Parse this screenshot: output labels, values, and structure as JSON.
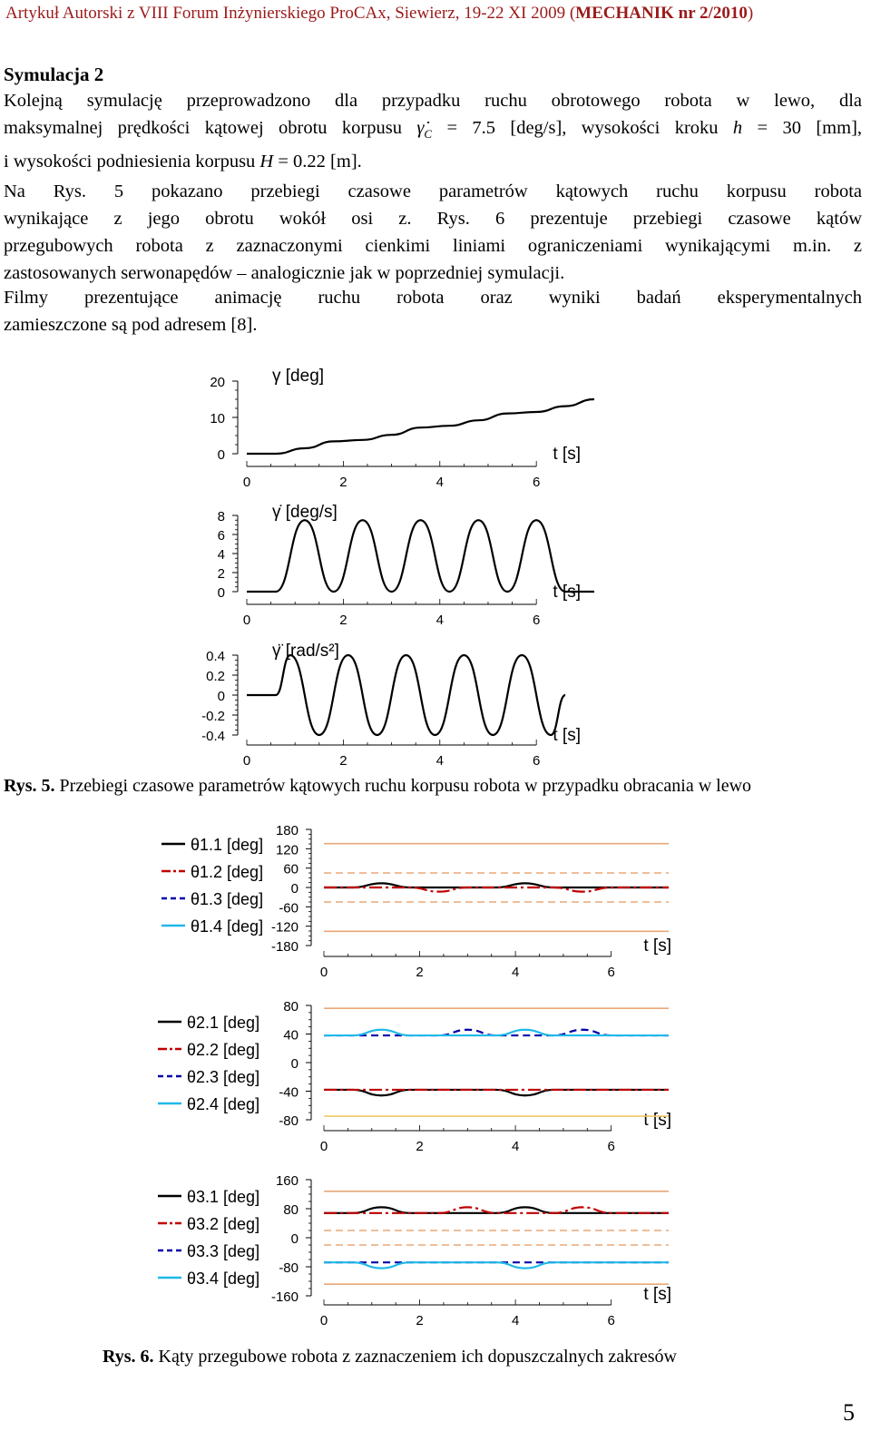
{
  "header": {
    "text": "Artykuł Autorski z VIII Forum Inżynierskiego ProCAx, Siewierz, 19-22 XI 2009 (",
    "journal": "MECHANIK nr 2/2010",
    "close": ")"
  },
  "section_title": "Symulacja 2",
  "paragraphs": {
    "p1": {
      "l1": "Kolejną symulację przeprowadzono dla przypadku ruchu obrotowego robota w lewo, dla",
      "l2_a": "maksymalnej prędkości kątowej obrotu korpusu",
      "l2_sym": "γ̇",
      "l2_sub": "C",
      "l2_b": "= 7.5 [deg/s], wysokości kroku",
      "l2_h": "h",
      "l2_c": "= 30 [mm],",
      "l3_a": "i wysokości podniesienia korpusu",
      "l3_H": "H",
      "l3_b": "= 0.22 [m]."
    },
    "p2": {
      "l1": "Na Rys. 5 pokazano przebiegi czasowe parametrów kątowych ruchu korpusu robota",
      "l2": "wynikające z jego obrotu wokół osi z. Rys. 6 prezentuje przebiegi czasowe kątów",
      "l3": "przegubowych robota z zaznaczonymi cienkimi liniami ograniczeniami wynikającymi m.in. z",
      "l4": "zastosowanych serwonapędów – analogicznie jak w poprzedniej symulacji."
    },
    "p3": {
      "l1": "Filmy prezentujące animację ruchu robota oraz wyniki badań eksperymentalnych",
      "l2": "zamieszczone są pod adresem [8]."
    }
  },
  "fig5_caption": {
    "label": "Rys. 5.",
    "text": " Przebiegi czasowe parametrów kątowych ruchu korpusu robota w przypadku obracania w lewo"
  },
  "fig6_caption": {
    "label": "Rys. 6.",
    "text": " Kąty przegubowe robota z zaznaczeniem ich dopuszczalnych zakresów"
  },
  "page_number": "5",
  "colors": {
    "black": "#000000",
    "red": "#c00000",
    "blue": "#0000aa",
    "cyan": "#20b8e8",
    "limit": "#e8a878",
    "limit2": "#f0c868"
  },
  "chart_data": [
    {
      "type": "line",
      "ylabel": "γ [deg]",
      "xlabel": "t [s]",
      "xticks": [
        "0",
        "2",
        "4",
        "6"
      ],
      "yticks": [
        "20",
        "10",
        "0"
      ],
      "xlim": [
        0,
        7.2
      ],
      "ylim": [
        0,
        20
      ],
      "series": [
        {
          "values": [
            [
              0,
              0
            ],
            [
              0.6,
              0
            ],
            [
              1.2,
              1.5
            ],
            [
              1.8,
              3.4
            ],
            [
              2.4,
              3.8
            ],
            [
              3,
              5.2
            ],
            [
              3.6,
              7.2
            ],
            [
              4.2,
              7.7
            ],
            [
              4.8,
              9.2
            ],
            [
              5.4,
              11.1
            ],
            [
              6,
              11.5
            ],
            [
              6.6,
              13.1
            ],
            [
              7.2,
              15
            ]
          ]
        }
      ]
    },
    {
      "type": "line",
      "ylabel": "γ̇ [deg/s]",
      "xlabel": "t [s]",
      "xticks": [
        "0",
        "2",
        "4",
        "6"
      ],
      "yticks": [
        "8",
        "6",
        "4",
        "2",
        "0"
      ],
      "xlim": [
        0,
        7.2
      ],
      "ylim": [
        0,
        8
      ],
      "series": [
        {
          "values": [
            [
              0,
              0
            ],
            [
              0.6,
              0
            ],
            [
              1.2,
              7.5
            ],
            [
              1.8,
              0
            ],
            [
              2.4,
              7.5
            ],
            [
              3,
              0
            ],
            [
              3.6,
              7.5
            ],
            [
              4.2,
              0
            ],
            [
              4.8,
              7.5
            ],
            [
              5.4,
              0
            ],
            [
              6,
              7.5
            ],
            [
              6.6,
              0
            ],
            [
              7.2,
              0
            ]
          ]
        }
      ]
    },
    {
      "type": "line",
      "ylabel": "γ̈ [rad/s²]",
      "xlabel": "t [s]",
      "xticks": [
        "0",
        "2",
        "4",
        "6"
      ],
      "yticks": [
        "0.4",
        "0.2",
        "0",
        "-0.2",
        "-0.4"
      ],
      "xlim": [
        0,
        7.2
      ],
      "ylim": [
        -0.4,
        0.4
      ],
      "series": [
        {
          "values": [
            [
              0,
              0
            ],
            [
              0.6,
              0
            ],
            [
              0.9,
              0.4
            ],
            [
              1.5,
              -0.4
            ],
            [
              2.1,
              0.4
            ],
            [
              2.7,
              -0.4
            ],
            [
              3.3,
              0.4
            ],
            [
              3.9,
              -0.4
            ],
            [
              4.5,
              0.4
            ],
            [
              5.1,
              -0.4
            ],
            [
              5.7,
              0.4
            ],
            [
              6.3,
              -0.4
            ],
            [
              6.6,
              0
            ]
          ]
        }
      ]
    },
    {
      "type": "line",
      "xlabel": "t [s]",
      "xticks": [
        "0",
        "2",
        "4",
        "6"
      ],
      "yticks": [
        "180",
        "120",
        "60",
        "0",
        "-60",
        "-120",
        "-180"
      ],
      "xlim": [
        0,
        7.2
      ],
      "ylim": [
        -180,
        180
      ],
      "legend": [
        "θ1.1 [deg]",
        "θ1.2 [deg]",
        "θ1.3 [deg]",
        "θ1.4 [deg]"
      ],
      "series": [
        {
          "name": "θ1.1 [deg]",
          "values": [
            [
              0,
              0
            ],
            [
              0.6,
              0
            ],
            [
              1.2,
              13
            ],
            [
              1.8,
              0
            ],
            [
              2.4,
              0
            ],
            [
              3,
              0
            ],
            [
              3.6,
              0
            ],
            [
              4.2,
              13
            ],
            [
              4.8,
              0
            ],
            [
              5.4,
              0
            ],
            [
              6,
              0
            ],
            [
              7.2,
              0
            ]
          ]
        },
        {
          "name": "θ1.2 [deg]",
          "values": [
            [
              0,
              0
            ],
            [
              0.6,
              0
            ],
            [
              1.2,
              0
            ],
            [
              1.8,
              0
            ],
            [
              2.4,
              -13
            ],
            [
              3,
              0
            ],
            [
              3.6,
              0
            ],
            [
              4.2,
              0
            ],
            [
              4.8,
              0
            ],
            [
              5.4,
              -13
            ],
            [
              6,
              0
            ],
            [
              7.2,
              0
            ]
          ]
        }
      ],
      "limits": [
        136,
        45,
        -45,
        -136
      ]
    },
    {
      "type": "line",
      "xlabel": "t [s]",
      "xticks": [
        "0",
        "2",
        "4",
        "6"
      ],
      "yticks": [
        "80",
        "40",
        "0",
        "-40",
        "-80"
      ],
      "xlim": [
        0,
        7.2
      ],
      "ylim": [
        -80,
        80
      ],
      "legend": [
        "θ2.1 [deg]",
        "θ2.2 [deg]",
        "θ2.3 [deg]",
        "θ2.4 [deg]"
      ],
      "series": [
        {
          "name": "θ2.1 [deg]",
          "values": [
            [
              0,
              -38
            ],
            [
              0.6,
              -38
            ],
            [
              1.2,
              -46
            ],
            [
              1.8,
              -38
            ],
            [
              3,
              -38
            ],
            [
              3.6,
              -38
            ],
            [
              4.2,
              -46
            ],
            [
              4.8,
              -38
            ],
            [
              6,
              -38
            ],
            [
              7.2,
              -38
            ]
          ]
        },
        {
          "name": "θ2.2 [deg]",
          "values": [
            [
              0,
              -38
            ],
            [
              7.2,
              -38
            ]
          ]
        },
        {
          "name": "θ2.3 [deg]",
          "values": [
            [
              0,
              38
            ],
            [
              2.4,
              38
            ],
            [
              3,
              46
            ],
            [
              3.6,
              38
            ],
            [
              4.8,
              38
            ],
            [
              5.4,
              46
            ],
            [
              6,
              38
            ],
            [
              7.2,
              38
            ]
          ]
        },
        {
          "name": "θ2.4 [deg]",
          "values": [
            [
              0,
              38
            ],
            [
              0.6,
              38
            ],
            [
              1.2,
              46
            ],
            [
              1.8,
              38
            ],
            [
              3,
              38
            ],
            [
              3.6,
              38
            ],
            [
              4.2,
              46
            ],
            [
              4.8,
              38
            ],
            [
              7.2,
              38
            ]
          ]
        }
      ],
      "limits": [
        76,
        -75
      ]
    },
    {
      "type": "line",
      "xlabel": "t [s]",
      "xticks": [
        "0",
        "2",
        "4",
        "6"
      ],
      "yticks": [
        "160",
        "80",
        "0",
        "-80",
        "-160"
      ],
      "xlim": [
        0,
        7.2
      ],
      "ylim": [
        -160,
        160
      ],
      "legend": [
        "θ3.1 [deg]",
        "θ3.2 [deg]",
        "θ3.3 [deg]",
        "θ3.4 [deg]"
      ],
      "series": [
        {
          "name": "θ3.1 [deg]",
          "values": [
            [
              0,
              68
            ],
            [
              0.6,
              68
            ],
            [
              1.2,
              84
            ],
            [
              1.8,
              68
            ],
            [
              3,
              68
            ],
            [
              3.6,
              68
            ],
            [
              4.2,
              84
            ],
            [
              4.8,
              68
            ],
            [
              7.2,
              68
            ]
          ]
        },
        {
          "name": "θ3.2 [deg]",
          "values": [
            [
              0,
              68
            ],
            [
              2.4,
              68
            ],
            [
              3,
              84
            ],
            [
              3.6,
              68
            ],
            [
              4.8,
              68
            ],
            [
              5.4,
              84
            ],
            [
              6,
              68
            ],
            [
              7.2,
              68
            ]
          ]
        },
        {
          "name": "θ3.3 [deg]",
          "values": [
            [
              0,
              -68
            ],
            [
              7.2,
              -68
            ]
          ]
        },
        {
          "name": "θ3.4 [deg]",
          "values": [
            [
              0,
              -68
            ],
            [
              0.6,
              -68
            ],
            [
              1.2,
              -84
            ],
            [
              1.8,
              -68
            ],
            [
              3,
              -68
            ],
            [
              3.6,
              -68
            ],
            [
              4.2,
              -84
            ],
            [
              4.8,
              -68
            ],
            [
              7.2,
              -68
            ]
          ]
        }
      ],
      "limits": [
        128,
        20,
        -20,
        -128
      ]
    }
  ]
}
